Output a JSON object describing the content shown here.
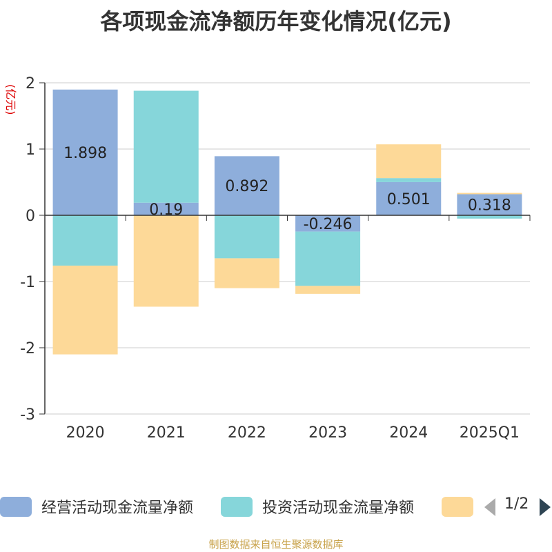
{
  "title": "各项现金流净额历年变化情况(亿元)",
  "source": "制图数据来自恒生聚源数据库",
  "legend_page": "1/2",
  "chart_data": {
    "type": "bar",
    "stacked": true,
    "title": "各项现金流净额历年变化情况(亿元)",
    "ylabel": "(亿元)",
    "ylim": [
      -3,
      2
    ],
    "yticks": [
      2,
      1,
      0,
      -1,
      -2,
      -3
    ],
    "grid": true,
    "legend_position": "bottom",
    "categories": [
      "2020",
      "2021",
      "2022",
      "2023",
      "2024",
      "2025Q1"
    ],
    "series": [
      {
        "name": "经营活动现金流量净额",
        "color": "#8eaedb",
        "values": [
          1.898,
          0.19,
          0.892,
          -0.246,
          0.501,
          0.318
        ],
        "labels": [
          "1.898",
          "0.19",
          "0.892",
          "-0.246",
          "0.501",
          "0.318"
        ]
      },
      {
        "name": "投资活动现金流量净额",
        "color": "#86d6da",
        "values": [
          -0.76,
          1.69,
          -0.65,
          -0.82,
          0.06,
          -0.05
        ],
        "labels": null
      },
      {
        "name": "",
        "color": "#fdd998",
        "values": [
          -1.34,
          -1.38,
          -0.45,
          -0.12,
          0.51,
          0.02
        ],
        "labels": null
      }
    ]
  }
}
